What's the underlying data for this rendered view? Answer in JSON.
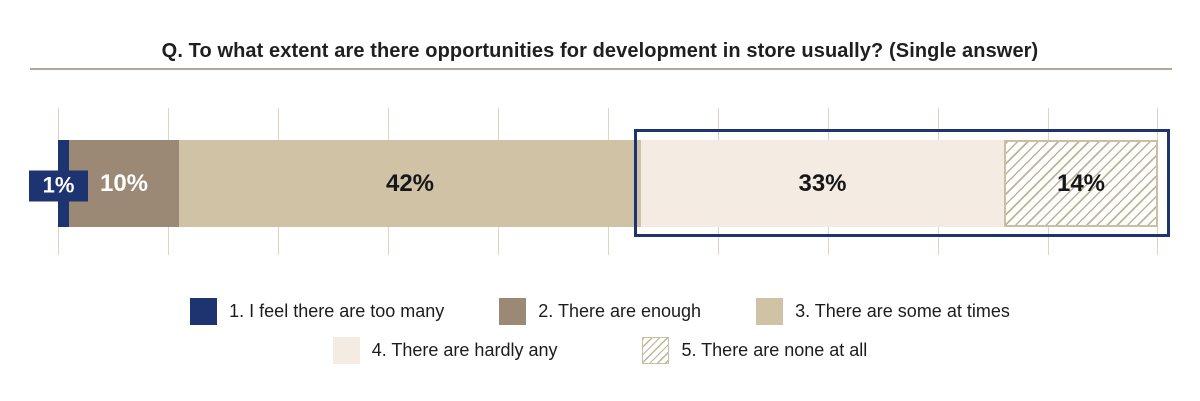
{
  "title": "Q. To what extent are there opportunities for development in store usually? (Single answer)",
  "colors": {
    "navy": "#1d3470",
    "taupe": "#9b8875",
    "tan": "#cfc2a5",
    "cream": "#f4ebe3",
    "hatch_line": "#c0b394",
    "hatch_border": "#cabfa3",
    "gridline": "#ddd4bf",
    "rule": "#b0a794",
    "text_dark": "#171717",
    "text_light": "#ffffff"
  },
  "chart_data": {
    "type": "bar",
    "stacked": true,
    "orientation": "horizontal",
    "title": "Q. To what extent are there opportunities for development in store usually? (Single answer)",
    "categories": [
      "1. I feel there are too many",
      "2. There are enough",
      "3. There are some at times",
      "4. There are hardly any",
      "5. There are none at all"
    ],
    "values": [
      1,
      10,
      42,
      33,
      14
    ],
    "labels": [
      "1%",
      "10%",
      "42%",
      "33%",
      "14%"
    ],
    "unit": "percent",
    "xlim": [
      0,
      100
    ],
    "gridline_interval": 10,
    "grid": true,
    "legend_position": "bottom",
    "swatches": [
      "navy",
      "taupe",
      "tan",
      "cream",
      "hatch"
    ],
    "label_styles": [
      "callout-light",
      "inside-light",
      "inside-dark",
      "inside-dark",
      "inside-dark"
    ],
    "highlight": {
      "start_percent": 53,
      "end_percent": 100,
      "description": "navy outline box around answers 4 and 5 (47% combined)"
    }
  },
  "legend": {
    "rows": [
      [
        {
          "label": "1. I feel there are too many",
          "swatch": "navy"
        },
        {
          "label": "2. There are enough",
          "swatch": "taupe"
        },
        {
          "label": "3. There are some at times",
          "swatch": "tan"
        }
      ],
      [
        {
          "label": "4. There are hardly any",
          "swatch": "cream"
        },
        {
          "label": "5. There are none at all",
          "swatch": "hatch"
        }
      ]
    ]
  }
}
